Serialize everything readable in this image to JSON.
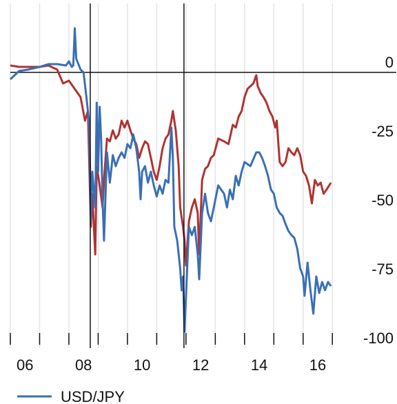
{
  "chart_data": {
    "type": "line",
    "xlim": [
      2006,
      2017.3
    ],
    "ylim": [
      -100,
      25
    ],
    "xticks": [
      {
        "value": 2006.5,
        "label": "06"
      },
      {
        "value": 2008.5,
        "label": "08"
      },
      {
        "value": 2010.5,
        "label": "10"
      },
      {
        "value": 2012.5,
        "label": "12"
      },
      {
        "value": 2014.5,
        "label": "14"
      },
      {
        "value": 2016.5,
        "label": "16"
      }
    ],
    "xminor_ticks": [
      2006,
      2007,
      2008,
      2009,
      2010,
      2011,
      2012,
      2013,
      2014,
      2015,
      2016,
      2017
    ],
    "yticks": [
      0,
      -25,
      -50,
      -75,
      -100
    ],
    "vlines": [
      2008.73,
      2011.93
    ],
    "zero_line": true,
    "series": [
      {
        "name": "USD/JPY",
        "color": "#3a6fb4",
        "x": [
          2006.0,
          2006.3,
          2006.6,
          2007.0,
          2007.3,
          2007.6,
          2007.9,
          2008.0,
          2008.1,
          2008.15,
          2008.2,
          2008.25,
          2008.4,
          2008.5,
          2008.6,
          2008.7,
          2008.75,
          2008.8,
          2008.9,
          2008.95,
          2009.0,
          2009.05,
          2009.1,
          2009.15,
          2009.2,
          2009.3,
          2009.4,
          2009.5,
          2009.6,
          2009.7,
          2009.8,
          2009.9,
          2010.0,
          2010.1,
          2010.2,
          2010.3,
          2010.4,
          2010.45,
          2010.5,
          2010.6,
          2010.7,
          2010.8,
          2010.9,
          2011.0,
          2011.1,
          2011.2,
          2011.3,
          2011.4,
          2011.5,
          2011.55,
          2011.6,
          2011.7,
          2011.8,
          2011.85,
          2011.9,
          2011.95,
          2012.0,
          2012.1,
          2012.2,
          2012.3,
          2012.4,
          2012.45,
          2012.55,
          2012.65,
          2012.75,
          2012.85,
          2012.95,
          2013.1,
          2013.3,
          2013.4,
          2013.5,
          2013.6,
          2013.7,
          2013.8,
          2013.9,
          2014.0,
          2014.2,
          2014.4,
          2014.5,
          2014.6,
          2014.7,
          2014.8,
          2014.9,
          2015.0,
          2015.1,
          2015.2,
          2015.3,
          2015.4,
          2015.5,
          2015.6,
          2015.7,
          2015.8,
          2015.9,
          2016.0,
          2016.05,
          2016.15,
          2016.25,
          2016.35,
          2016.45,
          2016.55,
          2016.65,
          2016.75,
          2016.85,
          2016.95
        ],
        "values": [
          -2.5,
          0.5,
          1,
          2,
          3,
          3,
          2.5,
          4,
          2,
          2.5,
          16,
          5,
          1,
          0,
          -9,
          -19,
          -54,
          -36,
          -49,
          -11,
          -36,
          -12.5,
          -24,
          -46,
          -61,
          -29,
          -40,
          -30,
          -34,
          -31,
          -29,
          -31,
          -26,
          -27.5,
          -22.5,
          -27.5,
          -36,
          -46,
          -36,
          -34,
          -40,
          -36,
          -41,
          -45,
          -41,
          -44,
          -39,
          -40,
          -20,
          -31,
          -56,
          -61,
          -71,
          -79,
          -74,
          -94,
          -81,
          -56,
          -59,
          -56,
          -66,
          -75,
          -51,
          -44,
          -51,
          -54,
          -49,
          -41,
          -44,
          -49,
          -42.5,
          -46,
          -37.5,
          -41,
          -36,
          -32.5,
          -34,
          -29,
          -29,
          -31,
          -34,
          -37.5,
          -42.5,
          -44,
          -49,
          -51,
          -52,
          -55,
          -57.5,
          -59,
          -60,
          -64,
          -71,
          -74,
          -81,
          -69,
          -79,
          -87.5,
          -74,
          -80,
          -76,
          -79,
          -76,
          -77.5
        ]
      },
      {
        "color": "#b03232",
        "x": [
          2006.0,
          2006.3,
          2006.6,
          2007.0,
          2007.3,
          2007.6,
          2007.8,
          2008.0,
          2008.2,
          2008.4,
          2008.55,
          2008.65,
          2008.75,
          2008.8,
          2008.9,
          2008.95,
          2009.05,
          2009.15,
          2009.2,
          2009.3,
          2009.4,
          2009.5,
          2009.6,
          2009.7,
          2009.8,
          2009.9,
          2010.0,
          2010.1,
          2010.2,
          2010.3,
          2010.4,
          2010.5,
          2010.6,
          2010.7,
          2010.8,
          2010.9,
          2011.0,
          2011.1,
          2011.2,
          2011.3,
          2011.4,
          2011.5,
          2011.55,
          2011.65,
          2011.75,
          2011.8,
          2011.9,
          2011.95,
          2012.0,
          2012.1,
          2012.2,
          2012.3,
          2012.4,
          2012.45,
          2012.55,
          2012.65,
          2012.75,
          2012.85,
          2012.95,
          2013.1,
          2013.3,
          2013.45,
          2013.6,
          2013.7,
          2013.8,
          2013.9,
          2014.0,
          2014.1,
          2014.2,
          2014.3,
          2014.4,
          2014.45,
          2014.55,
          2014.65,
          2014.75,
          2014.85,
          2014.95,
          2015.05,
          2015.1,
          2015.2,
          2015.3,
          2015.4,
          2015.5,
          2015.6,
          2015.7,
          2015.8,
          2015.9,
          2016.0,
          2016.1,
          2016.2,
          2016.3,
          2016.4,
          2016.5,
          2016.6,
          2016.7,
          2016.8,
          2016.95
        ],
        "values": [
          2.5,
          2,
          2,
          2,
          2.5,
          1,
          -4,
          -3,
          -6,
          -9,
          -17.5,
          -14,
          -56,
          -44,
          -66,
          -34,
          -41,
          -49,
          -39,
          -24,
          -25,
          -21,
          -24,
          -22.5,
          -17.5,
          -20,
          -17.5,
          -21,
          -24,
          -26,
          -31,
          -27.5,
          -25,
          -26,
          -31,
          -36,
          -39,
          -34,
          -27.5,
          -24,
          -22.5,
          -17.5,
          -14,
          -21,
          -34,
          -49,
          -56,
          -61,
          -70,
          -54,
          -49,
          -46,
          -51,
          -66,
          -39,
          -35,
          -34,
          -31,
          -30,
          -24,
          -25,
          -26,
          -19,
          -20,
          -16,
          -14,
          -9,
          -6,
          -5,
          -4,
          -1,
          -5,
          -7.5,
          -9,
          -11,
          -14,
          -16,
          -20,
          -17.5,
          -32.5,
          -34,
          -32.5,
          -27.5,
          -29,
          -30,
          -27.5,
          -30,
          -36,
          -37.5,
          -41,
          -47.5,
          -39,
          -41,
          -40,
          -44,
          -42.5,
          -40
        ]
      }
    ]
  }
}
